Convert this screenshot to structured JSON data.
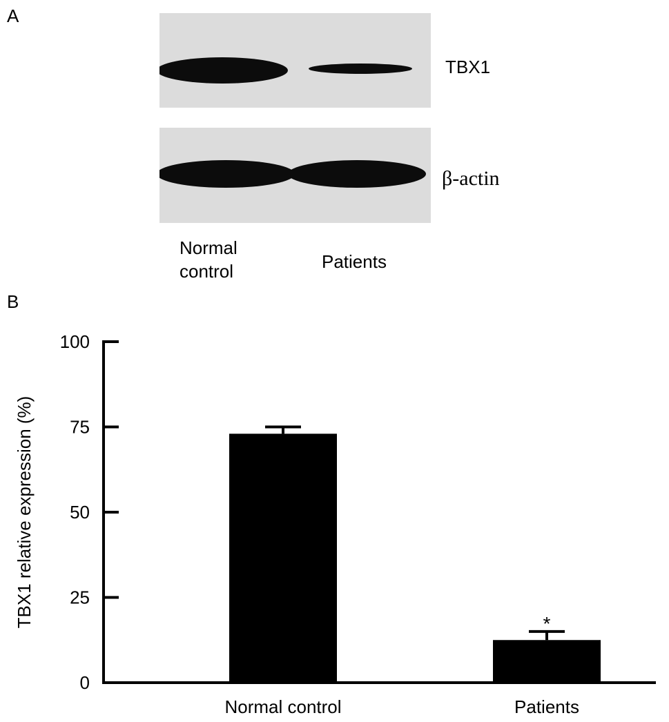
{
  "figure": {
    "panel_a_letter": "A",
    "panel_b_letter": "B",
    "blot_labels": {
      "top": "TBX1",
      "bottom": "β-actin"
    },
    "lane_labels": {
      "lane1_line1": "Normal",
      "lane1_line2": "control",
      "lane2": "Patients"
    }
  },
  "chart_data": {
    "type": "bar",
    "categories": [
      "Normal control",
      "Patients"
    ],
    "values": [
      73,
      12.5
    ],
    "error": [
      2,
      2.5
    ],
    "annotations": [
      "",
      "*"
    ],
    "ylabel": "TBX1 relative expression (%)",
    "xlabel": "",
    "ylim": [
      0,
      100
    ],
    "yticks": [
      0,
      25,
      50,
      75,
      100
    ],
    "grid": false,
    "bar_color": "#000000"
  }
}
